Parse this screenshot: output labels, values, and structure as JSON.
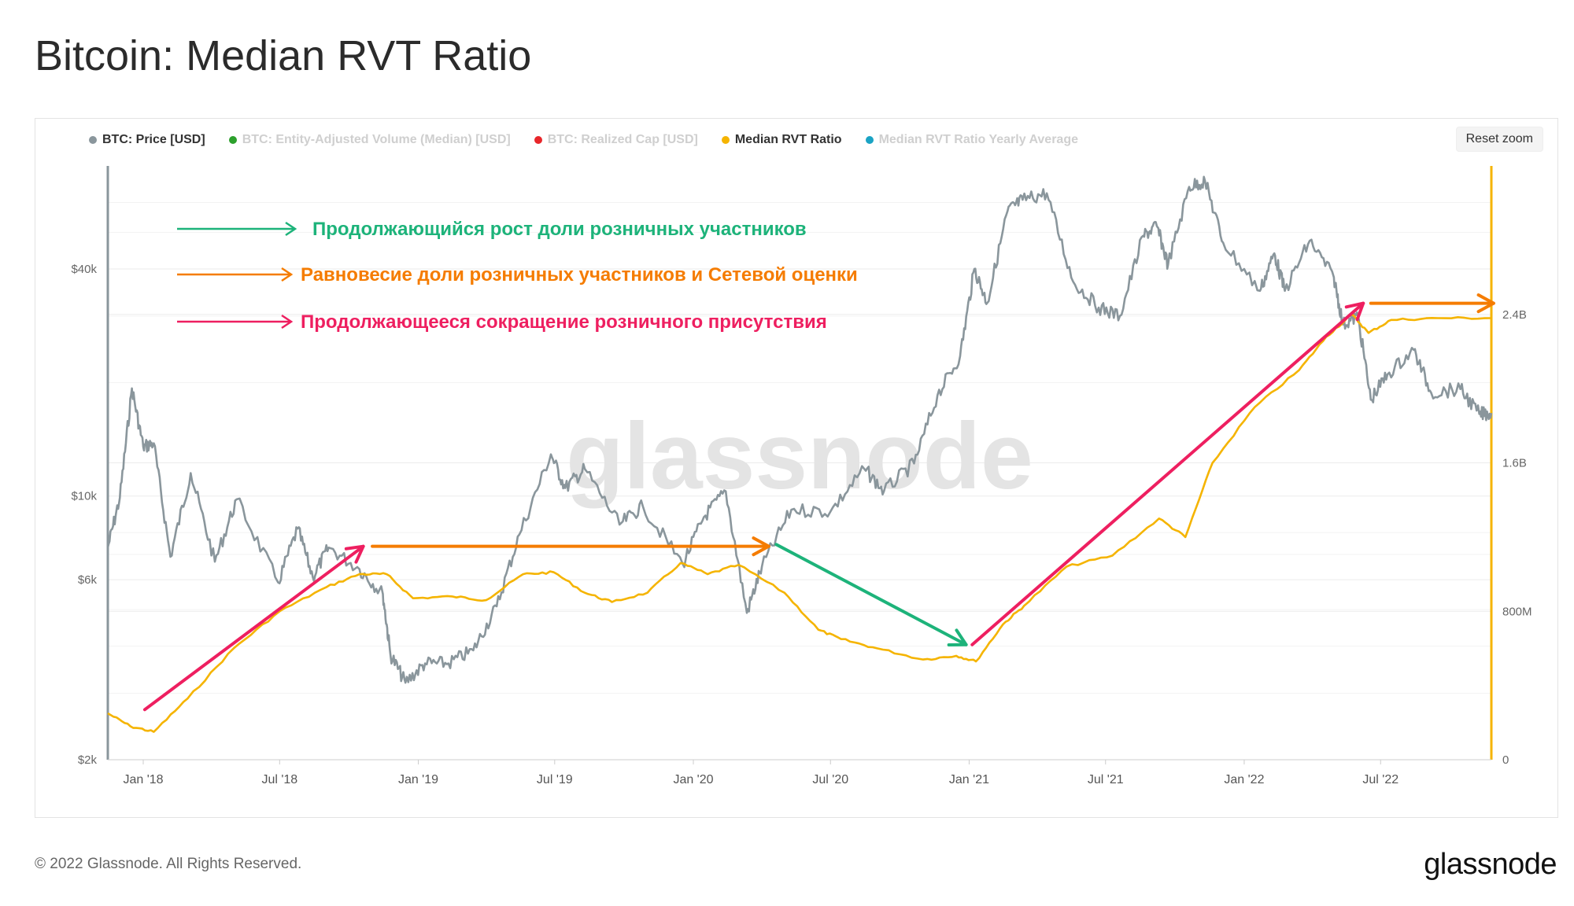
{
  "header": {
    "title": "Bitcoin: Median RVT Ratio"
  },
  "legend": [
    {
      "label": "BTC: Price [USD]",
      "color": "#8a969c",
      "active": true
    },
    {
      "label": "BTC: Entity-Adjusted Volume (Median) [USD]",
      "color": "#2ca02c",
      "active": false
    },
    {
      "label": "BTC: Realized Cap [USD]",
      "color": "#e8262a",
      "active": false
    },
    {
      "label": "Median RVT Ratio",
      "color": "#f5b400",
      "active": true
    },
    {
      "label": "Median RVT Ratio Yearly Average",
      "color": "#1aa3c4",
      "active": false
    }
  ],
  "toolbar": {
    "reset_zoom": "Reset zoom"
  },
  "watermark": "glassnode",
  "annotations": [
    {
      "text": "Продолжающийся рост доли розничных участников",
      "color": "#1db37a"
    },
    {
      "text": "Равновесие доли розничных участников и Сетевой оценки",
      "color": "#f57c00"
    },
    {
      "text": "Продолжающееся сокращение розничного присутствия",
      "color": "#ee1f60"
    }
  ],
  "chart_data": {
    "type": "line",
    "x_axis": {
      "tick_labels": [
        "Jan '18",
        "Jul '18",
        "Jan '19",
        "Jul '19",
        "Jan '20",
        "Jul '20",
        "Jan '21",
        "Jul '21",
        "Jan '22",
        "Jul '22"
      ],
      "range": [
        "2017-11-15",
        "2022-11-25"
      ]
    },
    "y_left": {
      "scale": "log",
      "tick_labels": [
        "$2k",
        "$6k",
        "$10k",
        "$40k"
      ],
      "tick_values": [
        2000,
        6000,
        10000,
        40000
      ],
      "range": [
        2000,
        75000
      ]
    },
    "y_right": {
      "scale": "linear",
      "tick_labels": [
        "0",
        "800M",
        "1.6B",
        "2.4B"
      ],
      "tick_values": [
        0,
        800000000,
        1600000000,
        2400000000
      ],
      "range": [
        0,
        3200000000
      ]
    },
    "series": [
      {
        "name": "BTC: Price [USD]",
        "axis": "left",
        "color": "#8a969c",
        "points": [
          [
            "2017-11-15",
            7300
          ],
          [
            "2017-12-01",
            9900
          ],
          [
            "2017-12-17",
            19300
          ],
          [
            "2018-01-01",
            13500
          ],
          [
            "2018-01-15",
            13800
          ],
          [
            "2018-02-06",
            6900
          ],
          [
            "2018-03-05",
            11500
          ],
          [
            "2018-04-06",
            6700
          ],
          [
            "2018-05-05",
            9800
          ],
          [
            "2018-06-29",
            5900
          ],
          [
            "2018-07-25",
            8200
          ],
          [
            "2018-08-14",
            6100
          ],
          [
            "2018-09-04",
            7300
          ],
          [
            "2018-10-15",
            6400
          ],
          [
            "2018-11-15",
            5500
          ],
          [
            "2018-11-25",
            3800
          ],
          [
            "2018-12-15",
            3200
          ],
          [
            "2019-01-10",
            3600
          ],
          [
            "2019-02-10",
            3600
          ],
          [
            "2019-03-15",
            3900
          ],
          [
            "2019-04-15",
            5100
          ],
          [
            "2019-05-15",
            7900
          ],
          [
            "2019-06-26",
            12900
          ],
          [
            "2019-07-15",
            10500
          ],
          [
            "2019-08-10",
            11800
          ],
          [
            "2019-09-25",
            8400
          ],
          [
            "2019-10-26",
            9400
          ],
          [
            "2019-12-18",
            6600
          ],
          [
            "2020-01-15",
            8800
          ],
          [
            "2020-02-13",
            10300
          ],
          [
            "2020-03-12",
            4900
          ],
          [
            "2020-04-01",
            6500
          ],
          [
            "2020-05-10",
            9200
          ],
          [
            "2020-07-01",
            9100
          ],
          [
            "2020-08-15",
            11800
          ],
          [
            "2020-09-10",
            10300
          ],
          [
            "2020-10-20",
            12200
          ],
          [
            "2020-11-20",
            18500
          ],
          [
            "2020-12-20",
            23500
          ],
          [
            "2021-01-08",
            40000
          ],
          [
            "2021-01-25",
            32500
          ],
          [
            "2021-02-21",
            57000
          ],
          [
            "2021-03-13",
            61000
          ],
          [
            "2021-04-14",
            63500
          ],
          [
            "2021-05-19",
            37000
          ],
          [
            "2021-06-22",
            31600
          ],
          [
            "2021-07-20",
            30000
          ],
          [
            "2021-08-20",
            49000
          ],
          [
            "2021-09-07",
            52000
          ],
          [
            "2021-09-22",
            41000
          ],
          [
            "2021-10-20",
            66000
          ],
          [
            "2021-11-10",
            68500
          ],
          [
            "2021-12-04",
            47000
          ],
          [
            "2022-01-22",
            35000
          ],
          [
            "2022-02-10",
            44000
          ],
          [
            "2022-02-24",
            35000
          ],
          [
            "2022-03-29",
            47500
          ],
          [
            "2022-04-30",
            38000
          ],
          [
            "2022-05-12",
            28500
          ],
          [
            "2022-06-01",
            30000
          ],
          [
            "2022-06-18",
            18000
          ],
          [
            "2022-07-10",
            21000
          ],
          [
            "2022-08-14",
            24400
          ],
          [
            "2022-09-06",
            18800
          ],
          [
            "2022-10-15",
            19200
          ],
          [
            "2022-11-09",
            16500
          ],
          [
            "2022-11-25",
            16600
          ]
        ]
      },
      {
        "name": "Median RVT Ratio",
        "axis": "right",
        "color": "#f5b400",
        "points": [
          [
            "2017-11-15",
            250000000
          ],
          [
            "2017-12-15",
            180000000
          ],
          [
            "2018-01-15",
            150000000
          ],
          [
            "2018-03-01",
            330000000
          ],
          [
            "2018-05-01",
            600000000
          ],
          [
            "2018-07-01",
            800000000
          ],
          [
            "2018-09-01",
            930000000
          ],
          [
            "2018-10-15",
            1000000000
          ],
          [
            "2018-11-20",
            1000000000
          ],
          [
            "2018-12-25",
            870000000
          ],
          [
            "2019-02-15",
            880000000
          ],
          [
            "2019-04-01",
            860000000
          ],
          [
            "2019-05-20",
            1000000000
          ],
          [
            "2019-06-30",
            1010000000
          ],
          [
            "2019-08-10",
            900000000
          ],
          [
            "2019-09-15",
            850000000
          ],
          [
            "2019-11-01",
            900000000
          ],
          [
            "2019-12-15",
            1060000000
          ],
          [
            "2020-01-20",
            1000000000
          ],
          [
            "2020-03-01",
            1050000000
          ],
          [
            "2020-05-01",
            900000000
          ],
          [
            "2020-06-15",
            700000000
          ],
          [
            "2020-07-15",
            650000000
          ],
          [
            "2020-09-01",
            600000000
          ],
          [
            "2020-11-01",
            540000000
          ],
          [
            "2020-12-15",
            560000000
          ],
          [
            "2021-01-10",
            530000000
          ],
          [
            "2021-02-15",
            730000000
          ],
          [
            "2021-03-15",
            830000000
          ],
          [
            "2021-05-10",
            1040000000
          ],
          [
            "2021-07-10",
            1100000000
          ],
          [
            "2021-09-10",
            1300000000
          ],
          [
            "2021-10-15",
            1200000000
          ],
          [
            "2021-11-20",
            1600000000
          ],
          [
            "2022-01-15",
            1900000000
          ],
          [
            "2022-03-15",
            2100000000
          ],
          [
            "2022-04-20",
            2280000000
          ],
          [
            "2022-05-24",
            2400000000
          ],
          [
            "2022-06-15",
            2300000000
          ],
          [
            "2022-07-15",
            2370000000
          ],
          [
            "2022-09-15",
            2380000000
          ],
          [
            "2022-11-25",
            2380000000
          ]
        ]
      }
    ],
    "arrows": [
      {
        "color": "#ee1f60",
        "from": [
          "2018-01-03",
          270000000
        ],
        "to": [
          "2018-10-20",
          1150000000
        ]
      },
      {
        "color": "#f57c00",
        "from": [
          "2018-11-01",
          1150000000
        ],
        "to": [
          "2020-04-10",
          1150000000
        ]
      },
      {
        "color": "#1db37a",
        "from": [
          "2020-04-20",
          1160000000
        ],
        "to": [
          "2020-12-28",
          620000000
        ]
      },
      {
        "color": "#ee1f60",
        "from": [
          "2021-01-05",
          620000000
        ],
        "to": [
          "2022-06-08",
          2460000000
        ]
      },
      {
        "color": "#f57c00",
        "from": [
          "2022-06-18",
          2460000000
        ],
        "to": [
          "2022-11-28",
          2460000000
        ]
      }
    ],
    "legend_position": "top-left",
    "grid": true
  }
}
